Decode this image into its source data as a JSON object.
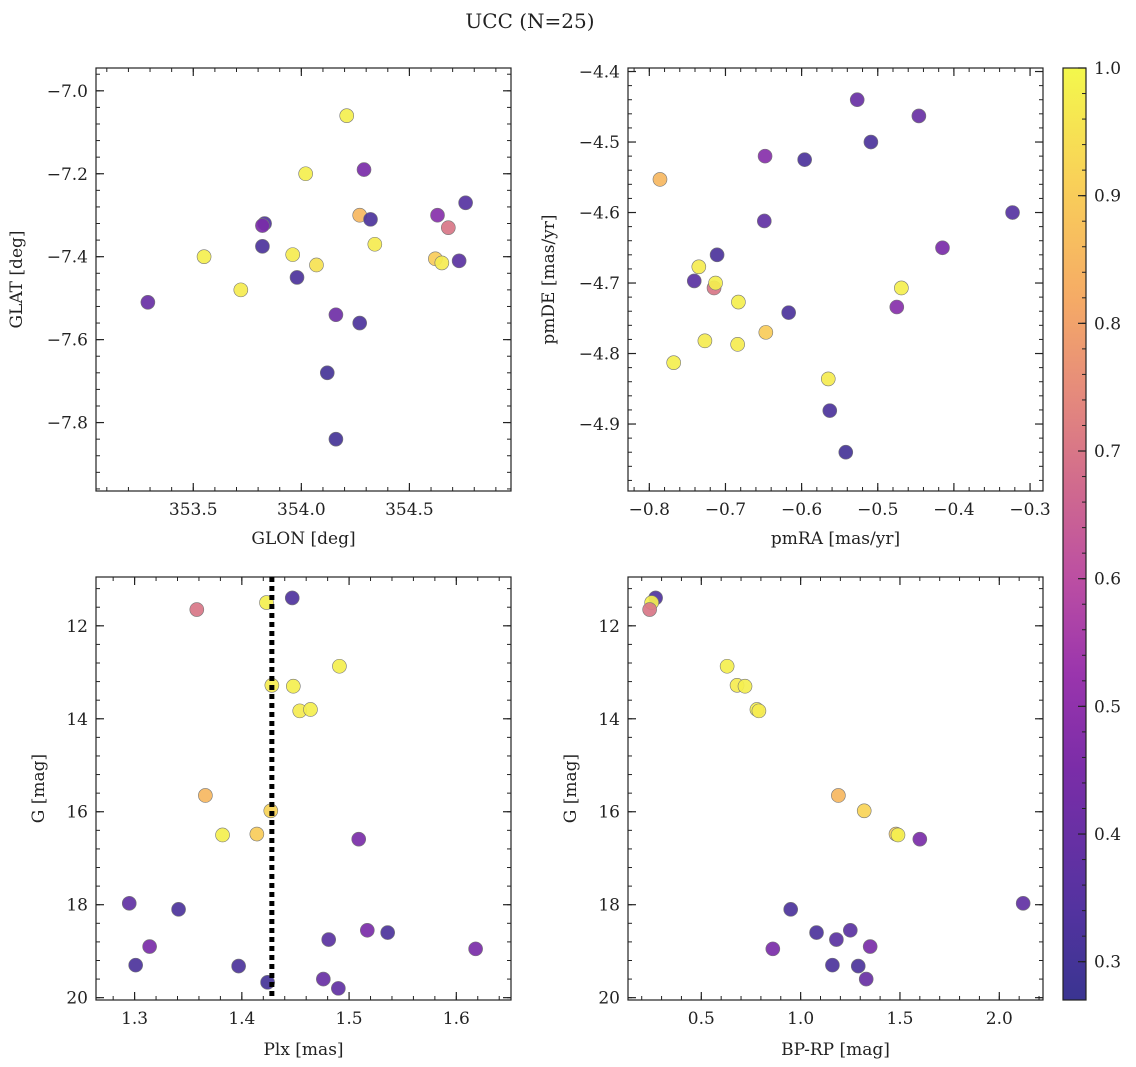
{
  "figure_title": "UCC (N=25)",
  "colorbar": {
    "range": [
      0.27,
      1.0
    ],
    "ticks": [
      "0.3",
      "0.4",
      "0.5",
      "0.6",
      "0.7",
      "0.8",
      "0.9",
      "1.0"
    ],
    "tick_values": [
      0.3,
      0.4,
      0.5,
      0.6,
      0.7,
      0.8,
      0.9,
      1.0
    ],
    "colormap": "plasma"
  },
  "chart_data": [
    {
      "type": "scatter",
      "xlabel": "GLON [deg]",
      "ylabel": "GLAT [deg]",
      "xlim": [
        353.05,
        354.97
      ],
      "ylim": [
        -7.965,
        -6.945
      ],
      "y_inverted": false,
      "xticks": [
        353.5,
        354.0,
        354.5
      ],
      "xtick_labels": [
        "353.5",
        "354.0",
        "354.5"
      ],
      "yticks": [
        -7.0,
        -7.2,
        -7.4,
        -7.6,
        -7.8
      ],
      "ytick_labels": [
        "−7.0",
        "−7.2",
        "−7.4",
        "−7.6",
        "−7.8"
      ],
      "points": [
        {
          "x": 354.21,
          "y": -7.06,
          "c": 0.98
        },
        {
          "x": 354.02,
          "y": -7.2,
          "c": 0.98
        },
        {
          "x": 354.29,
          "y": -7.19,
          "c": 0.45
        },
        {
          "x": 354.76,
          "y": -7.27,
          "c": 0.35
        },
        {
          "x": 354.27,
          "y": -7.3,
          "c": 0.85
        },
        {
          "x": 354.32,
          "y": -7.31,
          "c": 0.32
        },
        {
          "x": 354.63,
          "y": -7.3,
          "c": 0.48
        },
        {
          "x": 354.68,
          "y": -7.33,
          "c": 0.7
        },
        {
          "x": 353.83,
          "y": -7.32,
          "c": 0.33
        },
        {
          "x": 353.82,
          "y": -7.325,
          "c": 0.45
        },
        {
          "x": 353.82,
          "y": -7.375,
          "c": 0.32
        },
        {
          "x": 354.34,
          "y": -7.37,
          "c": 0.97
        },
        {
          "x": 353.96,
          "y": -7.395,
          "c": 0.97
        },
        {
          "x": 353.55,
          "y": -7.4,
          "c": 0.98
        },
        {
          "x": 354.07,
          "y": -7.42,
          "c": 0.95
        },
        {
          "x": 354.62,
          "y": -7.405,
          "c": 0.9
        },
        {
          "x": 354.65,
          "y": -7.415,
          "c": 0.97
        },
        {
          "x": 354.73,
          "y": -7.41,
          "c": 0.36
        },
        {
          "x": 353.98,
          "y": -7.45,
          "c": 0.32
        },
        {
          "x": 353.72,
          "y": -7.48,
          "c": 0.97
        },
        {
          "x": 353.29,
          "y": -7.51,
          "c": 0.4
        },
        {
          "x": 354.16,
          "y": -7.54,
          "c": 0.42
        },
        {
          "x": 354.27,
          "y": -7.56,
          "c": 0.32
        },
        {
          "x": 354.12,
          "y": -7.68,
          "c": 0.3
        },
        {
          "x": 354.16,
          "y": -7.84,
          "c": 0.3
        }
      ]
    },
    {
      "type": "scatter",
      "xlabel": "pmRA [mas/yr]",
      "ylabel": "pmDE [mas/yr]",
      "xlim": [
        -0.828,
        -0.283
      ],
      "ylim": [
        -4.995,
        -4.395
      ],
      "y_inverted": false,
      "xticks": [
        -0.8,
        -0.7,
        -0.6,
        -0.5,
        -0.4,
        -0.3
      ],
      "xtick_labels": [
        "−0.8",
        "−0.7",
        "−0.6",
        "−0.5",
        "−0.4",
        "−0.3"
      ],
      "yticks": [
        -4.4,
        -4.5,
        -4.6,
        -4.7,
        -4.8,
        -4.9
      ],
      "ytick_labels": [
        "−4.4",
        "−4.5",
        "−4.6",
        "−4.7",
        "−4.8",
        "−4.9"
      ],
      "points": [
        {
          "x": -0.527,
          "y": -4.44,
          "c": 0.4
        },
        {
          "x": -0.446,
          "y": -4.463,
          "c": 0.4
        },
        {
          "x": -0.509,
          "y": -4.5,
          "c": 0.32
        },
        {
          "x": -0.648,
          "y": -4.52,
          "c": 0.48
        },
        {
          "x": -0.596,
          "y": -4.525,
          "c": 0.32
        },
        {
          "x": -0.786,
          "y": -4.553,
          "c": 0.85
        },
        {
          "x": -0.649,
          "y": -4.612,
          "c": 0.38
        },
        {
          "x": -0.323,
          "y": -4.6,
          "c": 0.35
        },
        {
          "x": -0.415,
          "y": -4.65,
          "c": 0.45
        },
        {
          "x": -0.711,
          "y": -4.66,
          "c": 0.32
        },
        {
          "x": -0.735,
          "y": -4.677,
          "c": 0.97
        },
        {
          "x": -0.741,
          "y": -4.697,
          "c": 0.36
        },
        {
          "x": -0.715,
          "y": -4.707,
          "c": 0.7
        },
        {
          "x": -0.713,
          "y": -4.7,
          "c": 0.98
        },
        {
          "x": -0.469,
          "y": -4.707,
          "c": 0.98
        },
        {
          "x": -0.683,
          "y": -4.727,
          "c": 0.98
        },
        {
          "x": -0.475,
          "y": -4.734,
          "c": 0.48
        },
        {
          "x": -0.617,
          "y": -4.742,
          "c": 0.32
        },
        {
          "x": -0.647,
          "y": -4.77,
          "c": 0.9
        },
        {
          "x": -0.727,
          "y": -4.782,
          "c": 0.97
        },
        {
          "x": -0.684,
          "y": -4.787,
          "c": 0.97
        },
        {
          "x": -0.768,
          "y": -4.813,
          "c": 0.98
        },
        {
          "x": -0.565,
          "y": -4.836,
          "c": 0.97
        },
        {
          "x": -0.563,
          "y": -4.881,
          "c": 0.32
        },
        {
          "x": -0.542,
          "y": -4.94,
          "c": 0.3
        }
      ]
    },
    {
      "type": "scatter",
      "xlabel": "Plx [mas]",
      "ylabel": "G [mag]",
      "xlim": [
        1.264,
        1.651
      ],
      "ylim": [
        20.05,
        10.95
      ],
      "y_inverted": true,
      "vline": {
        "x": 1.428,
        "style": "dotted"
      },
      "xticks": [
        1.3,
        1.4,
        1.5,
        1.6
      ],
      "xtick_labels": [
        "1.3",
        "1.4",
        "1.5",
        "1.6"
      ],
      "yticks": [
        12,
        14,
        16,
        18,
        20
      ],
      "ytick_labels": [
        "12",
        "14",
        "16",
        "18",
        "20"
      ],
      "points": [
        {
          "x": 1.423,
          "y": 11.5,
          "c": 0.98
        },
        {
          "x": 1.447,
          "y": 11.4,
          "c": 0.33
        },
        {
          "x": 1.358,
          "y": 11.65,
          "c": 0.7
        },
        {
          "x": 1.491,
          "y": 12.87,
          "c": 0.98
        },
        {
          "x": 1.428,
          "y": 13.28,
          "c": 0.97
        },
        {
          "x": 1.448,
          "y": 13.3,
          "c": 0.98
        },
        {
          "x": 1.454,
          "y": 13.83,
          "c": 0.97
        },
        {
          "x": 1.464,
          "y": 13.8,
          "c": 0.98
        },
        {
          "x": 1.366,
          "y": 15.65,
          "c": 0.85
        },
        {
          "x": 1.427,
          "y": 15.98,
          "c": 0.92
        },
        {
          "x": 1.382,
          "y": 16.5,
          "c": 0.98
        },
        {
          "x": 1.414,
          "y": 16.48,
          "c": 0.9
        },
        {
          "x": 1.509,
          "y": 16.59,
          "c": 0.45
        },
        {
          "x": 1.295,
          "y": 17.97,
          "c": 0.38
        },
        {
          "x": 1.341,
          "y": 18.1,
          "c": 0.32
        },
        {
          "x": 1.517,
          "y": 18.55,
          "c": 0.45
        },
        {
          "x": 1.536,
          "y": 18.6,
          "c": 0.32
        },
        {
          "x": 1.481,
          "y": 18.75,
          "c": 0.36
        },
        {
          "x": 1.314,
          "y": 18.9,
          "c": 0.45
        },
        {
          "x": 1.618,
          "y": 18.95,
          "c": 0.45
        },
        {
          "x": 1.301,
          "y": 19.3,
          "c": 0.32
        },
        {
          "x": 1.397,
          "y": 19.32,
          "c": 0.32
        },
        {
          "x": 1.476,
          "y": 19.6,
          "c": 0.4
        },
        {
          "x": 1.424,
          "y": 19.67,
          "c": 0.3
        },
        {
          "x": 1.49,
          "y": 19.8,
          "c": 0.38
        }
      ]
    },
    {
      "type": "scatter",
      "xlabel": "BP-RP [mag]",
      "ylabel": "G [mag]",
      "xlim": [
        0.131,
        2.22
      ],
      "ylim": [
        20.05,
        10.95
      ],
      "y_inverted": true,
      "xticks": [
        0.5,
        1.0,
        1.5,
        2.0
      ],
      "xtick_labels": [
        "0.5",
        "1.0",
        "1.5",
        "2.0"
      ],
      "yticks": [
        12,
        14,
        16,
        18,
        20
      ],
      "ytick_labels": [
        "12",
        "14",
        "16",
        "18",
        "20"
      ],
      "points": [
        {
          "x": 0.27,
          "y": 11.4,
          "c": 0.33
        },
        {
          "x": 0.25,
          "y": 11.5,
          "c": 0.98
        },
        {
          "x": 0.24,
          "y": 11.65,
          "c": 0.7
        },
        {
          "x": 0.63,
          "y": 12.87,
          "c": 0.98
        },
        {
          "x": 0.68,
          "y": 13.28,
          "c": 0.97
        },
        {
          "x": 0.72,
          "y": 13.3,
          "c": 0.98
        },
        {
          "x": 0.78,
          "y": 13.8,
          "c": 0.98
        },
        {
          "x": 0.79,
          "y": 13.83,
          "c": 0.97
        },
        {
          "x": 1.19,
          "y": 15.65,
          "c": 0.85
        },
        {
          "x": 1.32,
          "y": 15.98,
          "c": 0.92
        },
        {
          "x": 1.48,
          "y": 16.48,
          "c": 0.9
        },
        {
          "x": 1.49,
          "y": 16.5,
          "c": 0.98
        },
        {
          "x": 1.6,
          "y": 16.59,
          "c": 0.45
        },
        {
          "x": 2.12,
          "y": 17.97,
          "c": 0.38
        },
        {
          "x": 0.95,
          "y": 18.1,
          "c": 0.32
        },
        {
          "x": 1.08,
          "y": 18.6,
          "c": 0.32
        },
        {
          "x": 1.25,
          "y": 18.55,
          "c": 0.36
        },
        {
          "x": 1.18,
          "y": 18.75,
          "c": 0.36
        },
        {
          "x": 0.86,
          "y": 18.95,
          "c": 0.45
        },
        {
          "x": 1.35,
          "y": 18.9,
          "c": 0.45
        },
        {
          "x": 1.16,
          "y": 19.3,
          "c": 0.32
        },
        {
          "x": 1.29,
          "y": 19.32,
          "c": 0.32
        },
        {
          "x": 1.33,
          "y": 19.6,
          "c": 0.4
        }
      ]
    }
  ]
}
